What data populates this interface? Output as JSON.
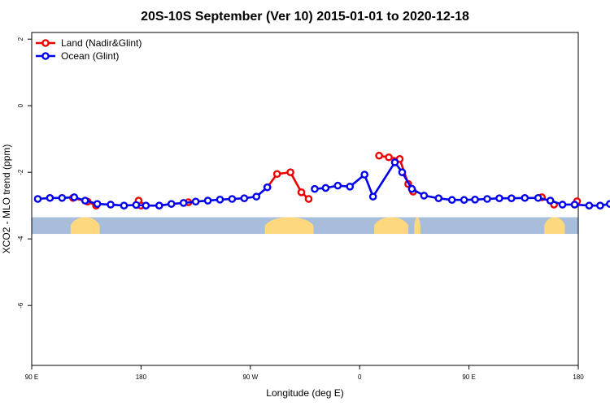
{
  "chart_data": {
    "type": "line",
    "title": "20S-10S September (Ver 10)   2015-01-01 to 2020-12-18",
    "xlabel": "Longitude (deg E)",
    "ylabel": "XCO2 - MLO trend (ppm)",
    "xlim": [
      90,
      540
    ],
    "ylim": [
      -7.8,
      2.2
    ],
    "x_ticks": [
      {
        "value": 90,
        "label": "90 E"
      },
      {
        "value": 180,
        "label": "180"
      },
      {
        "value": 270,
        "label": "90 W"
      },
      {
        "value": 360,
        "label": "0"
      },
      {
        "value": 450,
        "label": "90 E"
      },
      {
        "value": 540,
        "label": "180"
      }
    ],
    "y_ticks": [
      {
        "value": 2,
        "label": "2"
      },
      {
        "value": 0,
        "label": "0"
      },
      {
        "value": -2,
        "label": "-2"
      },
      {
        "value": -4,
        "label": "-4"
      },
      {
        "value": -6,
        "label": "-6"
      }
    ],
    "legend_position": "top-left",
    "land_sea_strip": {
      "y_range": [
        -3.35,
        -3.85
      ],
      "ocean_color": "#a7bddc",
      "land_color": "#fdd87f",
      "land_segments": [
        {
          "x_start": 122,
          "x_end": 146
        },
        {
          "x_start": 282,
          "x_end": 322
        },
        {
          "x_start": 372,
          "x_end": 400
        },
        {
          "x_start": 405,
          "x_end": 410
        },
        {
          "x_start": 512,
          "x_end": 529
        }
      ]
    },
    "series": [
      {
        "name": "Land (Nadir&Glint)",
        "color": "#ee0000",
        "segments": [
          [
            [
              124,
              -2.77
            ],
            [
              136,
              -2.88
            ],
            [
              143,
              -3.0
            ]
          ],
          [
            [
              178,
              -2.85
            ],
            [
              180,
              -3.0
            ]
          ],
          [
            [
              219,
              -2.9
            ]
          ],
          [
            [
              284,
              -2.45
            ],
            [
              292,
              -2.05
            ],
            [
              303,
              -2.0
            ],
            [
              312,
              -2.6
            ],
            [
              318,
              -2.8
            ]
          ],
          [
            [
              376,
              -1.5
            ],
            [
              384,
              -1.55
            ],
            [
              393,
              -1.6
            ],
            [
              400,
              -2.35
            ],
            [
              404,
              -2.58
            ]
          ],
          [
            [
              510,
              -2.75
            ]
          ],
          [
            [
              520,
              -2.97
            ]
          ],
          [
            [
              539,
              -2.87
            ]
          ]
        ]
      },
      {
        "name": "Ocean (Glint)",
        "color": "#0000ee",
        "segments": [
          [
            [
              95,
              -2.8
            ],
            [
              105,
              -2.77
            ],
            [
              115,
              -2.77
            ],
            [
              125,
              -2.75
            ],
            [
              134,
              -2.85
            ],
            [
              144,
              -2.95
            ],
            [
              155,
              -2.97
            ],
            [
              166,
              -3.0
            ],
            [
              176,
              -2.98
            ],
            [
              184,
              -3.0
            ],
            [
              195,
              -3.0
            ],
            [
              205,
              -2.95
            ],
            [
              215,
              -2.92
            ],
            [
              225,
              -2.88
            ],
            [
              235,
              -2.85
            ],
            [
              245,
              -2.82
            ],
            [
              255,
              -2.8
            ],
            [
              265,
              -2.78
            ],
            [
              275,
              -2.73
            ],
            [
              284,
              -2.45
            ]
          ],
          [
            [
              323,
              -2.5
            ],
            [
              332,
              -2.47
            ],
            [
              342,
              -2.4
            ],
            [
              352,
              -2.43
            ],
            [
              364,
              -2.07
            ],
            [
              371,
              -2.73
            ],
            [
              389,
              -1.7
            ],
            [
              395,
              -2.0
            ],
            [
              403,
              -2.5
            ],
            [
              413,
              -2.7
            ],
            [
              425,
              -2.78
            ],
            [
              436,
              -2.83
            ],
            [
              446,
              -2.83
            ],
            [
              455,
              -2.82
            ],
            [
              465,
              -2.8
            ],
            [
              475,
              -2.78
            ],
            [
              485,
              -2.78
            ],
            [
              496,
              -2.77
            ],
            [
              507,
              -2.77
            ],
            [
              517,
              -2.85
            ],
            [
              527,
              -2.97
            ],
            [
              537,
              -2.97
            ],
            [
              549,
              -3.0
            ],
            [
              558,
              -3.0
            ],
            [
              566,
              -2.95
            ]
          ]
        ]
      }
    ]
  }
}
